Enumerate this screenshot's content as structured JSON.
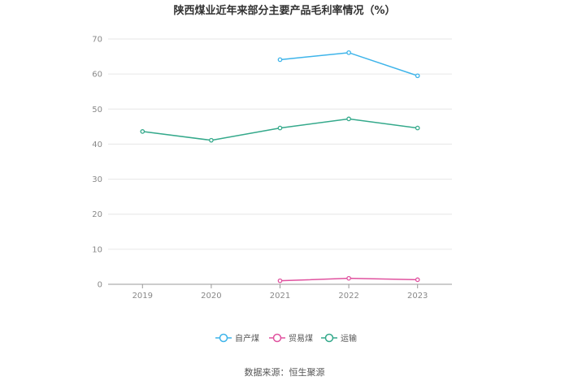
{
  "chart_data": {
    "type": "line",
    "title": "陕西煤业近年来部分主要产品毛利率情况（%）",
    "categories": [
      "2019",
      "2020",
      "2021",
      "2022",
      "2023"
    ],
    "ylim": [
      0,
      70
    ],
    "yticks": [
      0,
      10,
      20,
      30,
      40,
      50,
      60,
      70
    ],
    "grid": true,
    "legend_position": "bottom",
    "series": [
      {
        "name": "自产煤",
        "color": "#3db4ea",
        "values": [
          null,
          null,
          64.1,
          66.1,
          59.5
        ]
      },
      {
        "name": "贸易煤",
        "color": "#e0529f",
        "values": [
          null,
          null,
          1.0,
          1.7,
          1.3
        ]
      },
      {
        "name": "运输",
        "color": "#34a98b",
        "values": [
          43.6,
          41.1,
          44.6,
          47.2,
          44.6
        ]
      }
    ]
  },
  "source_text": "数据来源：恒生聚源"
}
